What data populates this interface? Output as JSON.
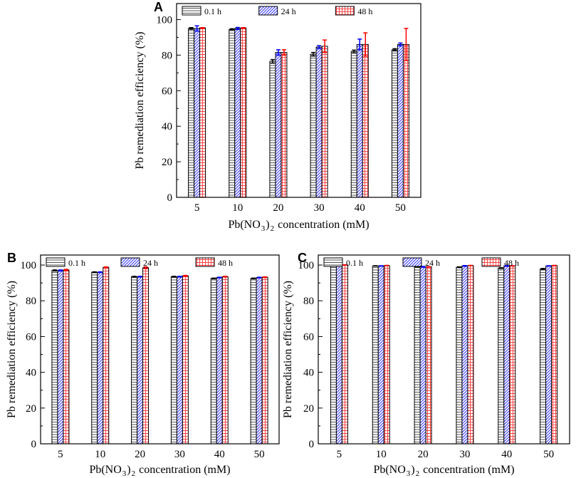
{
  "colors": {
    "s0": "#000000",
    "s1": "#0000ff",
    "s2": "#ff0000"
  },
  "chart_data": [
    {
      "type": "bar",
      "panel_label": "A",
      "categories": [
        "5",
        "10",
        "20",
        "30",
        "40",
        "50"
      ],
      "xlabel": "Pb(NO3)2 concentration (mM)",
      "xlabel_parts": [
        "Pb(NO",
        "3",
        ")",
        "2",
        " concentration (mM)"
      ],
      "ylabel": "Pb remediation efficiency (%)",
      "ylim": [
        0,
        109
      ],
      "yticks": [
        "0",
        "20",
        "40",
        "60",
        "80",
        "100"
      ],
      "legend": "top",
      "series": [
        {
          "name": "0.1 h",
          "values": [
            95,
            94.5,
            76.5,
            80.5,
            82,
            83
          ],
          "errors": [
            0.5,
            0.3,
            1,
            1,
            0.8,
            0.6
          ]
        },
        {
          "name": "24 h",
          "values": [
            95,
            95,
            81.5,
            84.5,
            86,
            86
          ],
          "errors": [
            1.5,
            0.6,
            1.5,
            0.8,
            3,
            0.8
          ]
        },
        {
          "name": "48 h",
          "values": [
            95.3,
            95.3,
            81.5,
            85,
            86,
            86
          ],
          "errors": [
            0.2,
            0.2,
            1.5,
            3.5,
            6.5,
            9
          ]
        }
      ]
    },
    {
      "type": "bar",
      "panel_label": "B",
      "categories": [
        "5",
        "10",
        "20",
        "30",
        "40",
        "50"
      ],
      "xlabel": "Pb(NO3)2 concentration (mM)",
      "xlabel_parts": [
        "Pb(NO",
        "3",
        ")",
        "2",
        " concentration (mM)"
      ],
      "ylabel": "Pb remediation efficiency (%)",
      "ylim": [
        0,
        105.6
      ],
      "yticks": [
        "0",
        "20",
        "40",
        "60",
        "80",
        "100"
      ],
      "legend": "top",
      "series": [
        {
          "name": "0.1 h",
          "values": [
            97,
            96,
            93.5,
            93.5,
            92.5,
            92.5
          ],
          "errors": [
            0.3,
            0.2,
            0.2,
            0.2,
            0.2,
            0.2
          ]
        },
        {
          "name": "24 h",
          "values": [
            97,
            96,
            93.5,
            93.5,
            93,
            93
          ],
          "errors": [
            0.3,
            0.2,
            0.2,
            0.2,
            0.2,
            0.2
          ]
        },
        {
          "name": "48 h",
          "values": [
            97.3,
            98.7,
            98.5,
            94,
            93.5,
            93.2
          ],
          "errors": [
            0.3,
            0.3,
            0.5,
            0.2,
            0.2,
            0.2
          ]
        }
      ]
    },
    {
      "type": "bar",
      "panel_label": "C",
      "categories": [
        "5",
        "10",
        "20",
        "30",
        "40",
        "50"
      ],
      "xlabel": "Pb(NO3)2 concentration (mM)",
      "xlabel_parts": [
        "Pb(NO",
        "3",
        ")",
        "2",
        " concentration (mM)"
      ],
      "ylabel": "Pb remediation efficiency (%)",
      "ylim": [
        0,
        105.6
      ],
      "yticks": [
        "0",
        "20",
        "40",
        "60",
        "80",
        "100"
      ],
      "legend": "top",
      "series": [
        {
          "name": "0.1 h",
          "values": [
            99.7,
            99.5,
            99,
            98.8,
            98.3,
            97.8
          ],
          "errors": [
            0.1,
            0.1,
            0.1,
            0.2,
            0.2,
            0.3
          ]
        },
        {
          "name": "24 h",
          "values": [
            100,
            99.5,
            99,
            99.5,
            99.5,
            99.5
          ],
          "errors": [
            0.1,
            0.1,
            0.2,
            0.2,
            0.2,
            0.1
          ]
        },
        {
          "name": "48 h",
          "values": [
            100,
            99.7,
            99,
            99.7,
            99.5,
            99.7
          ],
          "errors": [
            0.1,
            0.1,
            0.1,
            0.1,
            0.1,
            0.1
          ]
        }
      ]
    }
  ]
}
